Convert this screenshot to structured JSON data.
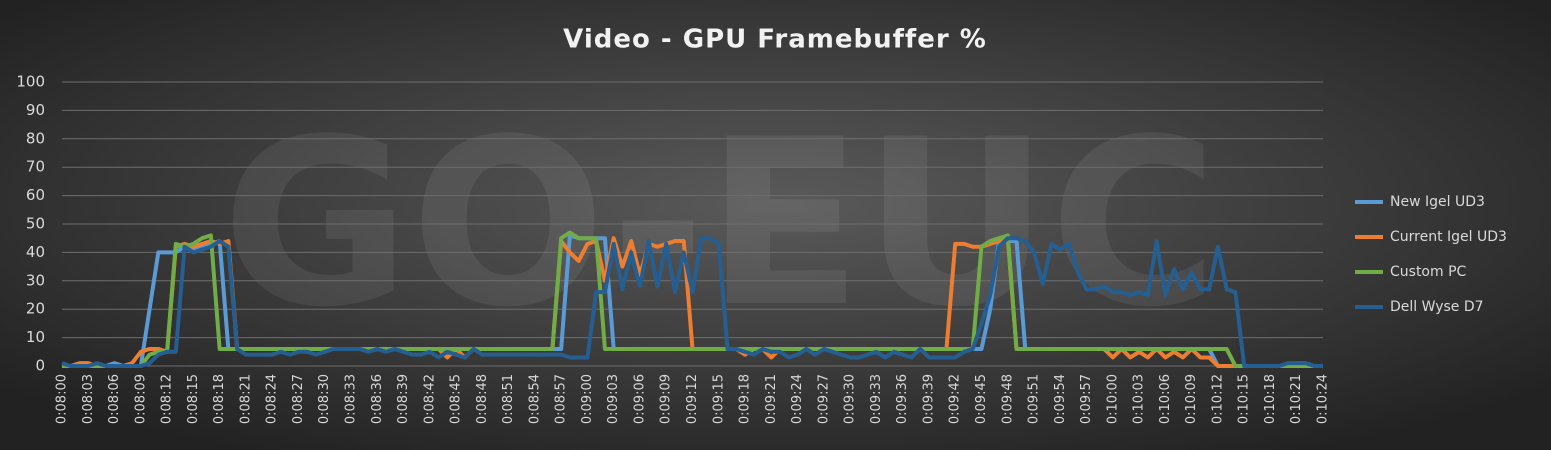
{
  "chart_data": {
    "type": "line",
    "title": "Video - GPU Framebuffer %",
    "watermark": "GO-EUC",
    "categories": [
      "0:08:00",
      null,
      null,
      "0:08:03",
      null,
      null,
      "0:08:06",
      null,
      null,
      "0:08:09",
      null,
      null,
      "0:08:12",
      null,
      null,
      "0:08:15",
      null,
      null,
      "0:08:18",
      null,
      null,
      "0:08:21",
      null,
      null,
      "0:08:24",
      null,
      null,
      "0:08:27",
      null,
      null,
      "0:08:30",
      null,
      null,
      "0:08:33",
      null,
      null,
      "0:08:36",
      null,
      null,
      "0:08:39",
      null,
      null,
      "0:08:42",
      null,
      null,
      "0:08:45",
      null,
      null,
      "0:08:48",
      null,
      null,
      "0:08:51",
      null,
      null,
      "0:08:54",
      null,
      null,
      "0:08:57",
      null,
      null,
      "0:09:00",
      null,
      null,
      "0:09:03",
      null,
      null,
      "0:09:06",
      null,
      null,
      "0:09:09",
      null,
      null,
      "0:09:12",
      null,
      null,
      "0:09:15",
      null,
      null,
      "0:09:18",
      null,
      null,
      "0:09:21",
      null,
      null,
      "0:09:24",
      null,
      null,
      "0:09:27",
      null,
      null,
      "0:09:30",
      null,
      null,
      "0:09:33",
      null,
      null,
      "0:09:36",
      null,
      null,
      "0:09:39",
      null,
      null,
      "0:09:42",
      null,
      null,
      "0:09:45",
      null,
      null,
      "0:09:48",
      null,
      null,
      "0:09:51",
      null,
      null,
      "0:09:54",
      null,
      null,
      "0:09:57",
      null,
      null,
      "0:10:00",
      null,
      null,
      "0:10:03",
      null,
      null,
      "0:10:06",
      null,
      null,
      "0:10:09",
      null,
      null,
      "0:10:12",
      null,
      null,
      "0:10:15",
      null,
      null,
      "0:10:18",
      null,
      null,
      "0:10:21",
      null,
      null,
      "0:10:24"
    ],
    "series": [
      {
        "name": "New Igel UD3",
        "color": "#5b9bd5",
        "values": [
          0,
          0,
          0,
          0,
          0,
          0,
          1,
          0,
          0,
          0,
          20,
          40,
          40,
          40,
          42,
          41,
          42,
          43,
          44,
          6,
          6,
          6,
          6,
          6,
          6,
          6,
          6,
          6,
          6,
          6,
          6,
          6,
          6,
          6,
          6,
          6,
          6,
          6,
          6,
          6,
          6,
          6,
          6,
          6,
          6,
          6,
          6,
          6,
          6,
          6,
          6,
          6,
          6,
          6,
          6,
          6,
          6,
          6,
          46,
          45,
          45,
          45,
          45,
          6,
          6,
          6,
          6,
          6,
          6,
          6,
          6,
          6,
          6,
          6,
          6,
          6,
          6,
          6,
          6,
          6,
          6,
          6,
          6,
          6,
          6,
          6,
          6,
          6,
          6,
          6,
          6,
          6,
          6,
          6,
          6,
          6,
          6,
          6,
          6,
          6,
          6,
          6,
          6,
          6,
          6,
          6,
          20,
          44,
          44,
          44,
          6,
          6,
          6,
          6,
          6,
          6,
          6,
          6,
          6,
          6,
          6,
          6,
          6,
          6,
          6,
          6,
          6,
          6,
          6,
          6,
          6,
          6,
          0,
          0,
          0,
          0,
          0,
          0,
          0,
          0,
          0,
          1,
          1,
          0,
          0
        ]
      },
      {
        "name": "Current Igel UD3",
        "color": "#ed7d31",
        "values": [
          0,
          0,
          1,
          1,
          0,
          0,
          0,
          0,
          1,
          5,
          6,
          6,
          5,
          42,
          43,
          42,
          43,
          44,
          43,
          44,
          6,
          6,
          6,
          6,
          6,
          6,
          6,
          6,
          6,
          6,
          6,
          6,
          6,
          6,
          6,
          6,
          6,
          6,
          6,
          6,
          6,
          6,
          6,
          6,
          3,
          6,
          3,
          6,
          6,
          6,
          6,
          6,
          6,
          6,
          6,
          6,
          6,
          44,
          40,
          37,
          43,
          44,
          30,
          45,
          35,
          44,
          32,
          43,
          42,
          43,
          44,
          44,
          6,
          6,
          6,
          6,
          6,
          6,
          4,
          6,
          6,
          3,
          6,
          6,
          6,
          6,
          6,
          6,
          6,
          6,
          6,
          6,
          6,
          6,
          6,
          6,
          6,
          6,
          6,
          6,
          6,
          6,
          43,
          43,
          42,
          42,
          43,
          44,
          45,
          6,
          6,
          6,
          6,
          6,
          6,
          6,
          6,
          6,
          6,
          6,
          3,
          6,
          3,
          5,
          3,
          6,
          3,
          5,
          3,
          6,
          3,
          3,
          0,
          0,
          0,
          0,
          0,
          0,
          0,
          0,
          0,
          0,
          0,
          0,
          0
        ]
      },
      {
        "name": "Custom PC",
        "color": "#70ad47",
        "values": [
          0,
          0,
          0,
          0,
          0,
          0,
          0,
          0,
          0,
          0,
          4,
          5,
          5,
          43,
          42,
          43,
          45,
          46,
          6,
          6,
          6,
          6,
          6,
          6,
          6,
          6,
          6,
          6,
          6,
          6,
          6,
          6,
          6,
          6,
          6,
          6,
          6,
          6,
          6,
          6,
          6,
          6,
          6,
          6,
          6,
          6,
          6,
          6,
          6,
          6,
          6,
          6,
          6,
          6,
          6,
          6,
          6,
          45,
          47,
          45,
          45,
          45,
          6,
          6,
          6,
          6,
          6,
          6,
          6,
          6,
          6,
          6,
          6,
          6,
          6,
          6,
          6,
          6,
          6,
          6,
          6,
          6,
          6,
          6,
          6,
          6,
          6,
          6,
          6,
          6,
          6,
          6,
          6,
          6,
          6,
          6,
          6,
          6,
          6,
          6,
          6,
          6,
          6,
          6,
          6,
          42,
          44,
          45,
          46,
          6,
          6,
          6,
          6,
          6,
          6,
          6,
          6,
          6,
          6,
          6,
          6,
          6,
          6,
          6,
          6,
          6,
          6,
          6,
          6,
          6,
          6,
          6,
          6,
          6,
          0,
          0,
          0,
          0,
          0,
          0,
          0,
          0,
          0,
          0,
          0
        ]
      },
      {
        "name": "Dell Wyse D7",
        "color": "#255e91",
        "values": [
          1,
          0,
          0,
          0,
          1,
          0,
          0,
          0,
          0,
          0,
          1,
          4,
          5,
          5,
          42,
          40,
          41,
          42,
          44,
          42,
          6,
          4,
          4,
          4,
          4,
          5,
          4,
          5,
          5,
          4,
          5,
          6,
          6,
          6,
          6,
          5,
          6,
          5,
          6,
          5,
          4,
          4,
          5,
          3,
          5,
          4,
          3,
          6,
          4,
          4,
          4,
          4,
          4,
          4,
          4,
          4,
          4,
          4,
          3,
          3,
          3,
          26,
          26,
          43,
          27,
          40,
          28,
          44,
          28,
          43,
          26,
          40,
          26,
          45,
          45,
          43,
          6,
          6,
          5,
          4,
          6,
          5,
          5,
          3,
          4,
          6,
          4,
          6,
          5,
          4,
          3,
          3,
          4,
          5,
          3,
          5,
          4,
          3,
          6,
          3,
          3,
          3,
          3,
          5,
          6,
          15,
          25,
          42,
          45,
          45,
          44,
          40,
          29,
          43,
          41,
          43,
          33,
          27,
          27,
          28,
          26,
          26,
          25,
          26,
          25,
          44,
          25,
          34,
          27,
          33,
          27,
          27,
          42,
          27,
          26,
          0,
          0,
          0,
          0,
          0,
          1,
          1,
          1,
          0,
          0
        ]
      }
    ],
    "ylim": [
      0,
      100
    ],
    "yticks": [
      0,
      10,
      20,
      30,
      40,
      50,
      60,
      70,
      80,
      90,
      100
    ],
    "grid": true,
    "legend": "right"
  }
}
